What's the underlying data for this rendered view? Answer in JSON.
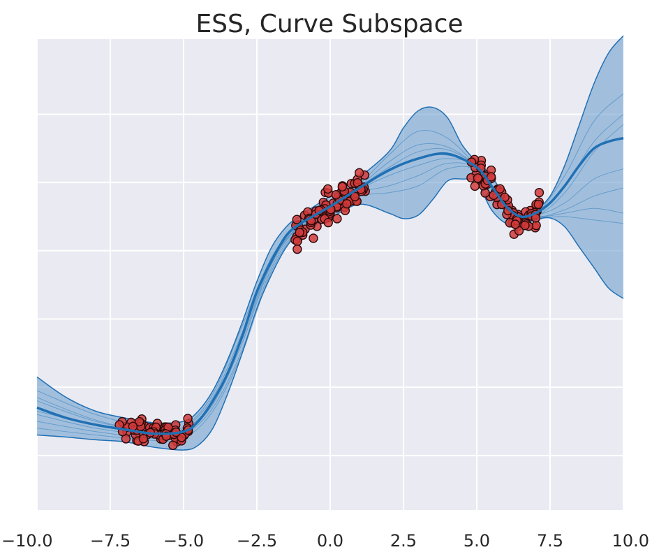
{
  "chart_data": {
    "type": "line",
    "title": "ESS, Curve Subspace",
    "xlabel": "",
    "ylabel": "",
    "xlim": [
      -10,
      10
    ],
    "ylim": [
      -3.3,
      3.6
    ],
    "grid": true,
    "x_ticks": [
      -10,
      -7.5,
      -5,
      -2.5,
      0,
      2.5,
      5,
      7.5,
      10
    ],
    "x_tick_labels": [
      "−10.0",
      "−7.5",
      "−5.0",
      "−2.5",
      "0.0",
      "2.5",
      "5.0",
      "7.5",
      "10.0"
    ],
    "y_gridlines": [
      -2.5,
      -1.5,
      -0.5,
      0.5,
      1.5,
      2.5
    ],
    "colors": {
      "band": "#6fa2cf",
      "band_edge": "#2070b4",
      "mean": "#2070b4",
      "points": "#d23b3b",
      "background": "#eaeaf2"
    },
    "mean_curve": {
      "x": [
        -10,
        -9,
        -8,
        -7,
        -6,
        -5,
        -4.5,
        -4,
        -3.5,
        -3,
        -2.5,
        -2,
        -1.5,
        -1,
        0,
        1,
        2,
        3,
        4,
        5,
        5.5,
        6,
        6.5,
        7,
        7.5,
        8,
        8.5,
        9,
        9.5,
        10
      ],
      "y": [
        -1.8,
        -1.95,
        -2.05,
        -2.12,
        -2.18,
        -2.15,
        -2.0,
        -1.7,
        -1.3,
        -0.75,
        -0.1,
        0.35,
        0.72,
        0.9,
        1.15,
        1.42,
        1.68,
        1.85,
        1.92,
        1.72,
        1.45,
        1.15,
        1.0,
        1.05,
        1.2,
        1.45,
        1.75,
        2.0,
        2.1,
        2.15
      ]
    },
    "band_upper": {
      "x": [
        -10,
        -9,
        -8,
        -7,
        -6,
        -5,
        -4.5,
        -4,
        -3.5,
        -3,
        -2.5,
        -2,
        -1.5,
        -1,
        0,
        1,
        2,
        2.5,
        3,
        3.5,
        4,
        4.5,
        5,
        5.5,
        6,
        6.5,
        7,
        7.5,
        8,
        8.5,
        9,
        9.5,
        10
      ],
      "y": [
        -1.35,
        -1.65,
        -1.85,
        -1.95,
        -2.02,
        -2.0,
        -1.85,
        -1.55,
        -1.1,
        -0.55,
        0.05,
        0.55,
        0.85,
        1.02,
        1.3,
        1.58,
        1.95,
        2.3,
        2.55,
        2.6,
        2.45,
        2.05,
        1.8,
        1.6,
        1.25,
        1.05,
        1.1,
        1.3,
        1.75,
        2.35,
        2.95,
        3.4,
        3.65
      ]
    },
    "band_lower": {
      "x": [
        -10,
        -9,
        -8,
        -7,
        -6,
        -5,
        -4.5,
        -4,
        -3.5,
        -3,
        -2.5,
        -2,
        -1.5,
        -1,
        0,
        1,
        2,
        2.5,
        3,
        3.5,
        4,
        4.5,
        5,
        5.5,
        6,
        6.5,
        7,
        7.5,
        8,
        8.5,
        9,
        9.5,
        10
      ],
      "y": [
        -2.2,
        -2.23,
        -2.27,
        -2.3,
        -2.38,
        -2.42,
        -2.35,
        -2.1,
        -1.6,
        -1.0,
        -0.35,
        0.15,
        0.55,
        0.77,
        0.98,
        1.18,
        1.05,
        0.97,
        1.02,
        1.25,
        1.52,
        1.55,
        1.5,
        1.1,
        0.9,
        0.88,
        0.95,
        0.98,
        0.85,
        0.55,
        0.25,
        -0.05,
        -0.2
      ]
    },
    "sample_curves": [
      {
        "x": [
          -10,
          -8,
          -6,
          -5,
          -4,
          -3,
          -2,
          -1,
          0,
          1,
          2,
          3,
          4,
          5,
          6,
          7,
          8,
          9,
          10
        ],
        "y": [
          -1.55,
          -1.9,
          -2.1,
          -2.08,
          -1.6,
          -0.6,
          0.4,
          0.92,
          1.2,
          1.48,
          1.9,
          2.25,
          2.15,
          1.72,
          1.12,
          1.05,
          1.6,
          2.4,
          2.8
        ]
      },
      {
        "x": [
          -10,
          -8,
          -6,
          -5,
          -4,
          -3,
          -2,
          -1,
          0,
          1,
          2,
          3,
          4,
          5,
          6,
          7,
          8,
          9,
          10
        ],
        "y": [
          -2.0,
          -2.15,
          -2.25,
          -2.2,
          -1.8,
          -0.95,
          0.25,
          0.85,
          1.1,
          1.35,
          1.45,
          1.6,
          1.78,
          1.7,
          1.18,
          1.0,
          1.1,
          1.3,
          1.42
        ]
      },
      {
        "x": [
          -10,
          -8,
          -6,
          -5,
          -4,
          -3,
          -2,
          -1,
          0,
          1,
          2,
          3,
          4,
          5,
          6,
          7,
          8,
          9,
          10
        ],
        "y": [
          -1.7,
          -2.0,
          -2.15,
          -2.12,
          -1.7,
          -0.75,
          0.35,
          0.9,
          1.18,
          1.45,
          1.8,
          2.05,
          2.02,
          1.72,
          1.15,
          1.02,
          1.35,
          1.95,
          2.35
        ]
      },
      {
        "x": [
          -10,
          -8,
          -6,
          -5,
          -4,
          -3,
          -2,
          -1,
          0,
          1,
          2,
          3,
          4,
          5,
          6,
          7,
          8,
          9,
          10
        ],
        "y": [
          -1.9,
          -2.1,
          -2.2,
          -2.15,
          -1.75,
          -0.85,
          0.3,
          0.88,
          1.14,
          1.4,
          1.6,
          1.75,
          1.85,
          1.73,
          1.14,
          1.0,
          1.05,
          1.12,
          1.05
        ]
      },
      {
        "x": [
          -10,
          -8,
          -6,
          -5,
          -4,
          -3,
          -2,
          -1,
          0,
          1,
          2,
          3,
          4,
          5,
          6,
          7,
          8,
          9,
          10
        ],
        "y": [
          -1.65,
          -1.98,
          -2.16,
          -2.1,
          -1.65,
          -0.7,
          0.4,
          0.92,
          1.17,
          1.44,
          1.72,
          1.95,
          1.98,
          1.72,
          1.15,
          1.04,
          1.45,
          2.1,
          2.5
        ]
      },
      {
        "x": [
          -10,
          -8,
          -6,
          -5,
          -4,
          -3,
          -2,
          -1,
          0,
          1,
          2,
          3,
          4,
          5,
          6,
          7,
          8,
          9,
          10
        ],
        "y": [
          -1.85,
          -2.05,
          -2.18,
          -2.14,
          -1.72,
          -0.8,
          0.33,
          0.89,
          1.16,
          1.42,
          1.66,
          1.85,
          1.9,
          1.72,
          1.16,
          1.03,
          1.2,
          1.55,
          1.7
        ]
      },
      {
        "x": [
          -10,
          -8,
          -6,
          -5,
          -4,
          -3,
          -2,
          -1,
          0,
          1,
          2,
          3,
          4,
          5,
          6,
          7,
          8,
          9,
          10
        ],
        "y": [
          -2.1,
          -2.2,
          -2.28,
          -2.25,
          -1.85,
          -1.0,
          0.2,
          0.83,
          1.08,
          1.3,
          1.35,
          1.45,
          1.7,
          1.68,
          1.2,
          1.0,
          1.0,
          0.95,
          0.9
        ]
      }
    ],
    "scatter_clusters": [
      {
        "x_range": [
          -7.2,
          -4.8
        ],
        "trend": [
          [
            -7.2,
            -2.12
          ],
          [
            -6,
            -2.18
          ],
          [
            -4.8,
            -2.15
          ]
        ],
        "spread": 0.14,
        "count": 70
      },
      {
        "x_range": [
          -1.2,
          1.2
        ],
        "trend": [
          [
            -1.2,
            0.75
          ],
          [
            0,
            1.15
          ],
          [
            1.2,
            1.5
          ]
        ],
        "spread": 0.2,
        "count": 90
      },
      {
        "x_range": [
          4.8,
          7.2
        ],
        "trend": [
          [
            4.8,
            1.75
          ],
          [
            5.6,
            1.4
          ],
          [
            6.4,
            0.9
          ],
          [
            7.2,
            1.15
          ]
        ],
        "spread": 0.18,
        "count": 80
      }
    ]
  }
}
